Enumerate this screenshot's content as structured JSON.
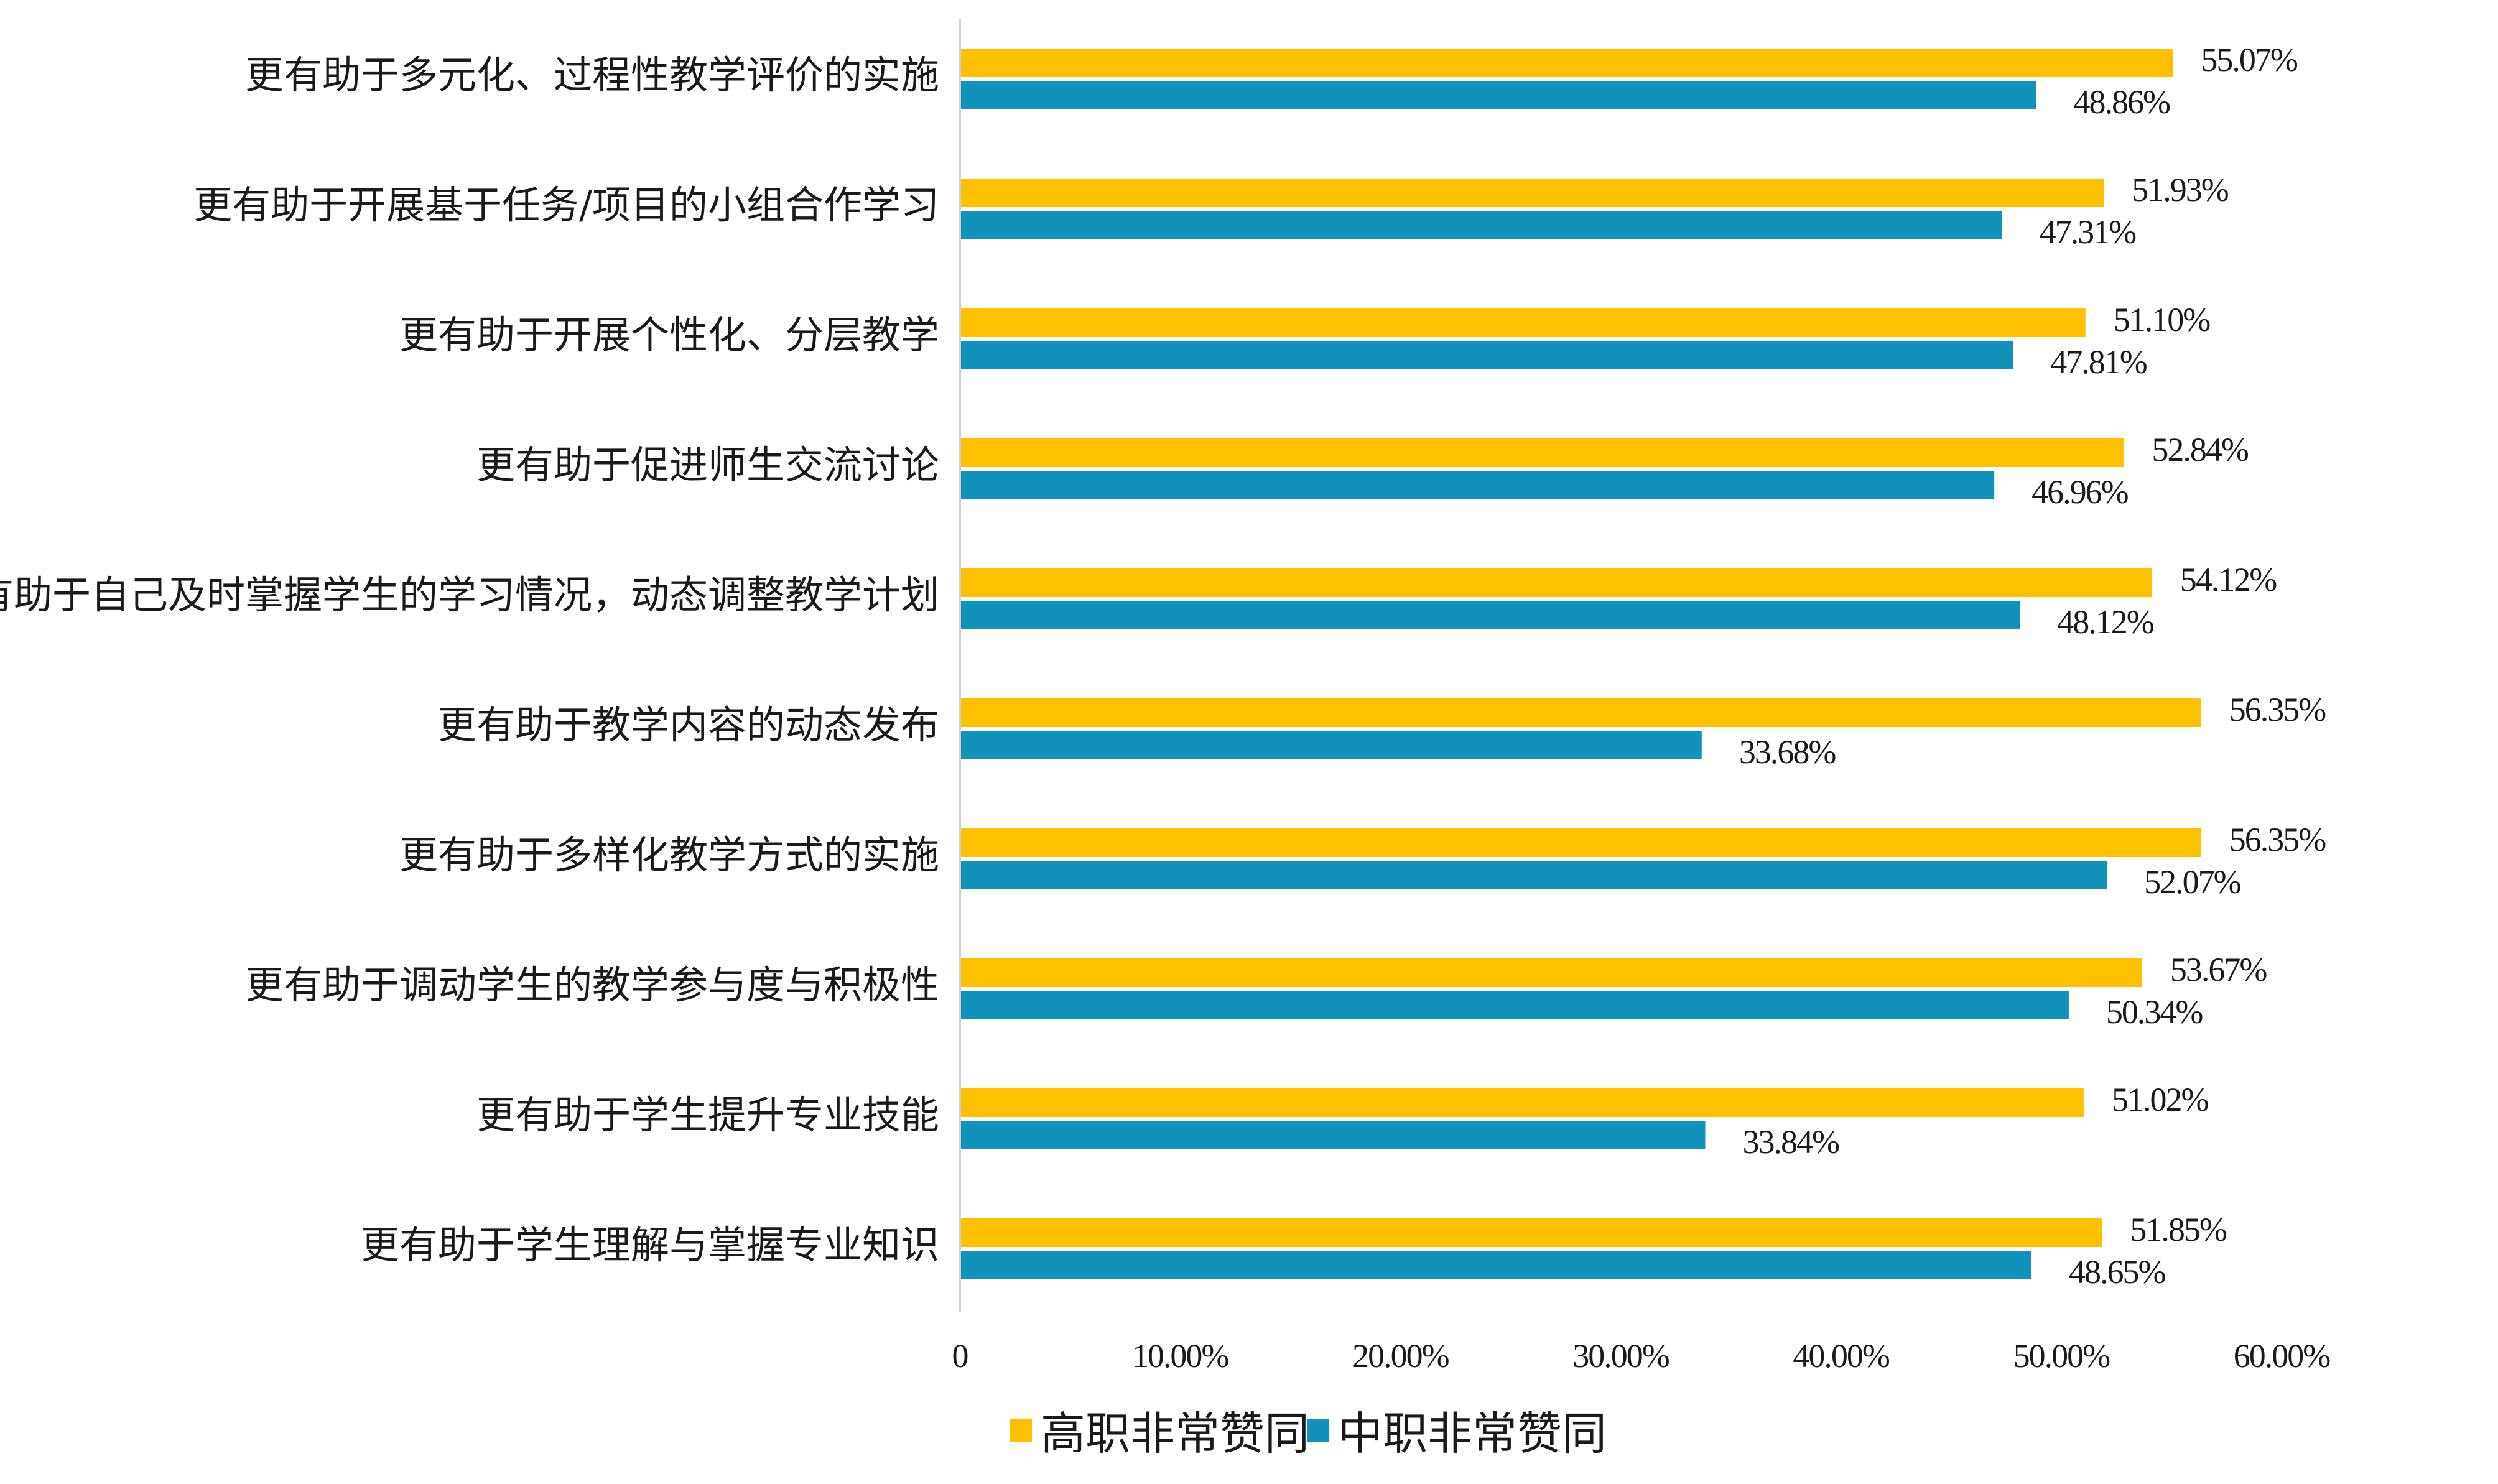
{
  "chart_data": {
    "type": "bar",
    "orientation": "horizontal",
    "categories": [
      "更有助于多元化、过程性教学评价的实施",
      "更有助于开展基于任务/项目的小组合作学习",
      "更有助于开展个性化、分层教学",
      "更有助于促进师生交流讨论",
      "更有助于自己及时掌握学生的学习情况，动态调整教学计划",
      "更有助于教学内容的动态发布",
      "更有助于多样化教学方式的实施",
      "更有助于调动学生的教学参与度与积极性",
      "更有助于学生提升专业技能",
      "更有助于学生理解与掌握专业知识"
    ],
    "series": [
      {
        "name": "高职非常赞同",
        "color": "#FFC000",
        "values": [
          55.07,
          51.93,
          51.1,
          52.84,
          54.12,
          56.35,
          56.35,
          53.67,
          51.02,
          51.85
        ],
        "labels": [
          "55.07%",
          "51.93%",
          "51.10%",
          "52.84%",
          "54.12%",
          "56.35%",
          "56.35%",
          "53.67%",
          "51.02%",
          "51.85%"
        ]
      },
      {
        "name": "中职非常赞同",
        "color": "#1192BA",
        "values": [
          48.86,
          47.31,
          47.81,
          46.96,
          48.12,
          33.68,
          52.07,
          50.34,
          33.84,
          48.65
        ],
        "labels": [
          "48.86%",
          "47.31%",
          "47.81%",
          "46.96%",
          "48.12%",
          "33.68%",
          "52.07%",
          "50.34%",
          "33.84%",
          "48.65%"
        ]
      }
    ],
    "x_ticks": [
      0,
      10,
      20,
      30,
      40,
      50,
      60
    ],
    "x_tick_labels": [
      "0",
      "10.00%",
      "20.00%",
      "30.00%",
      "40.00%",
      "50.00%",
      "60.00%"
    ],
    "xlim": [
      0,
      60
    ],
    "legend_position": "bottom",
    "grid": false,
    "title": "",
    "xlabel": "",
    "ylabel": ""
  }
}
